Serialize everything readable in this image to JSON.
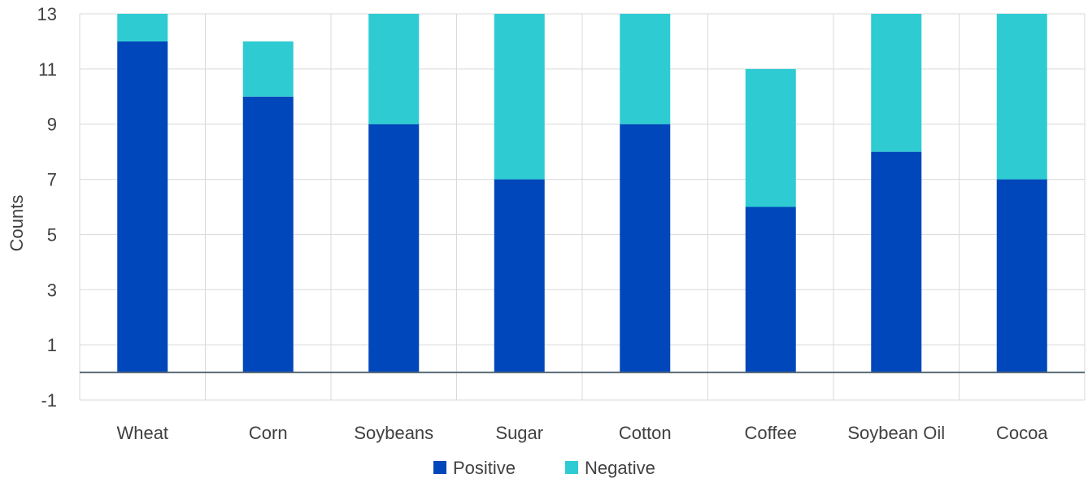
{
  "chart_data": {
    "type": "bar",
    "stacked": true,
    "categories": [
      "Wheat",
      "Corn",
      "Soybeans",
      "Sugar",
      "Cotton",
      "Coffee",
      "Soybean Oil",
      "Cocoa"
    ],
    "series": [
      {
        "name": "Positive",
        "color": "#0047BB",
        "values": [
          12,
          10,
          9,
          7,
          9,
          6,
          8,
          7
        ]
      },
      {
        "name": "Negative",
        "color": "#2ECBD3",
        "values": [
          1,
          2,
          4,
          6,
          4,
          5,
          5,
          6
        ]
      }
    ],
    "title": "",
    "xlabel": "",
    "ylabel": "Counts",
    "ylim": [
      -1,
      13
    ],
    "yticks": [
      "13",
      "11",
      "9",
      "7",
      "5",
      "3",
      "1",
      "-1"
    ],
    "grid": true,
    "legend_position": "bottom"
  }
}
